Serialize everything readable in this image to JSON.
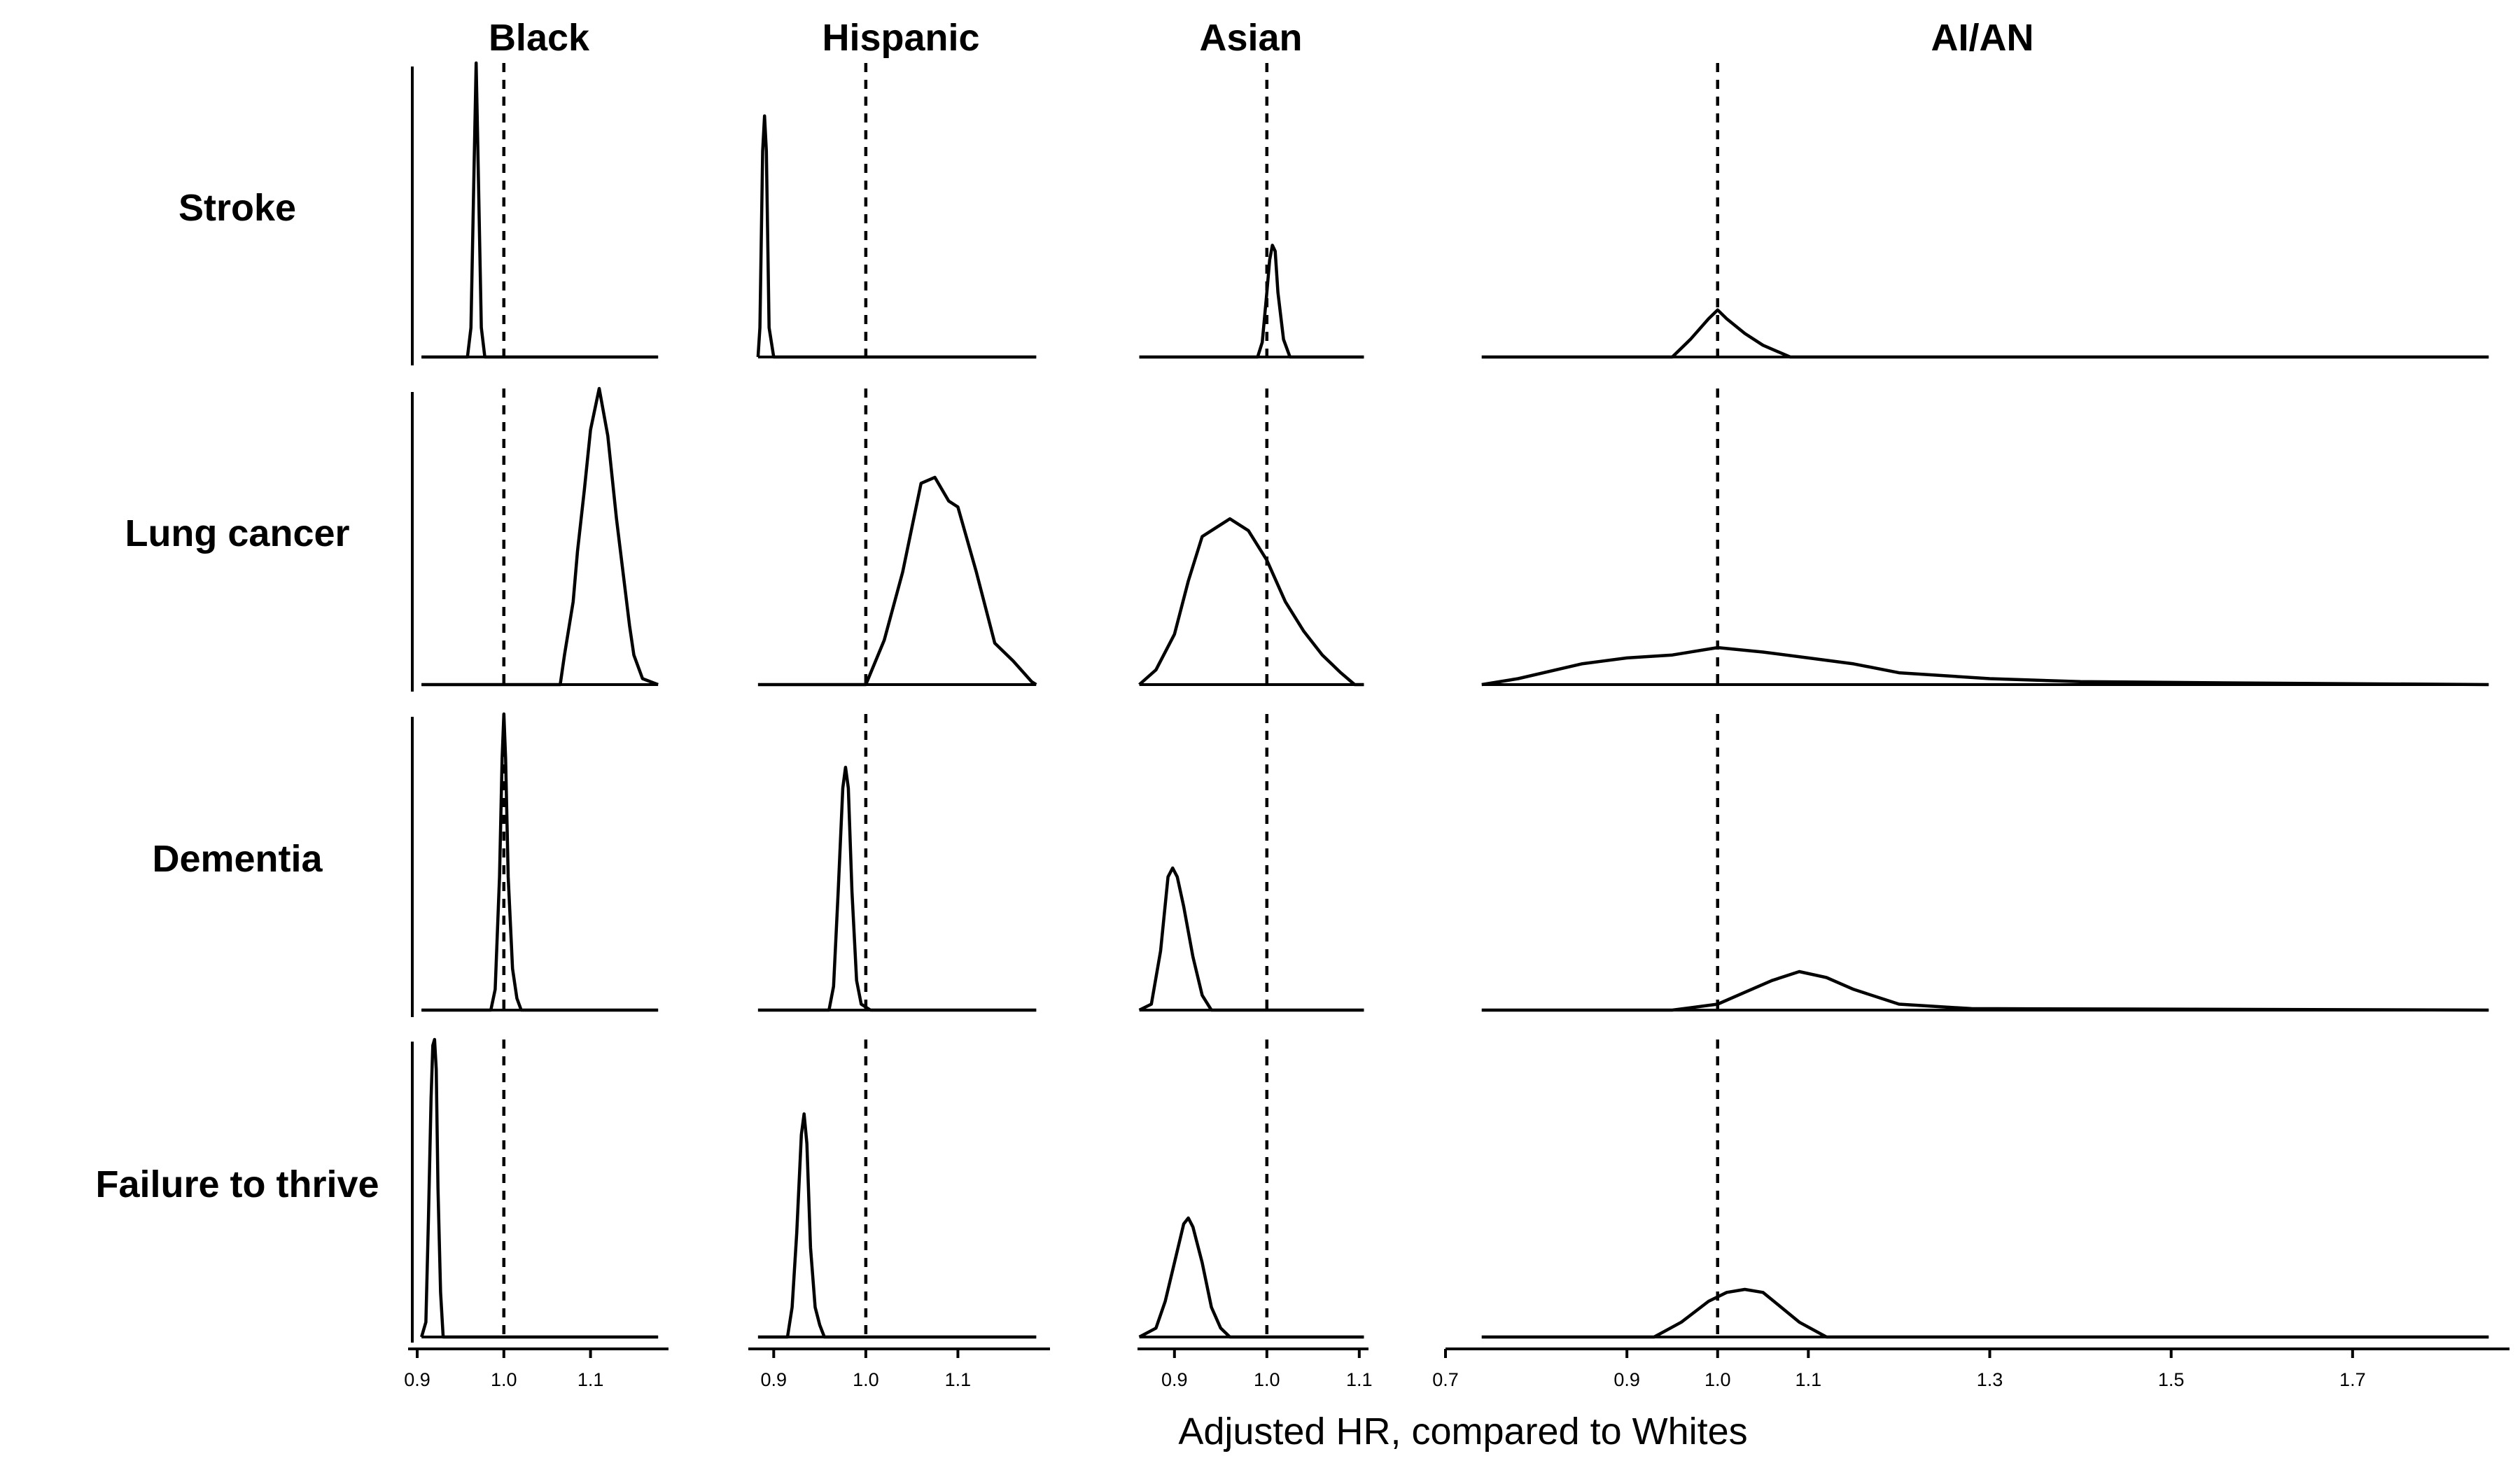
{
  "chart_data": {
    "type": "density",
    "reference_hr": 1.0,
    "x_axis_title": "Adjusted HR, compared to Whites",
    "rows": [
      "Stroke",
      "Lung cancer",
      "Dementia",
      "Failure to thrive"
    ],
    "columns": [
      {
        "title": "Black",
        "xlim": [
          0.9,
          1.19
        ],
        "ticks": [
          0.9,
          1.0,
          1.1
        ],
        "tick_labels": [
          "0.9",
          "1.0",
          "1.1"
        ]
      },
      {
        "title": "Hispanic",
        "xlim": [
          0.88,
          1.2
        ],
        "ticks": [
          0.9,
          1.0,
          1.1
        ],
        "tick_labels": [
          "0.9",
          "1.0",
          "1.1"
        ]
      },
      {
        "title": "Asian",
        "xlim": [
          0.86,
          1.11
        ],
        "ticks": [
          0.9,
          1.0,
          1.1
        ],
        "tick_labels": [
          "0.9",
          "1.0",
          "1.1"
        ]
      },
      {
        "title": "AI/AN",
        "xlim": [
          0.7,
          1.9
        ],
        "ticks": [
          0.7,
          0.9,
          1.0,
          1.1,
          1.3,
          1.5,
          1.7
        ],
        "tick_labels": [
          "0.7",
          "0.9",
          "1.0",
          "1.1",
          "1.3",
          "1.5",
          "1.7"
        ]
      }
    ],
    "densities": [
      [
        {
          "x": [
            0.905,
            0.958,
            0.962,
            0.966,
            0.968,
            0.97,
            0.974,
            0.978,
            1.0,
            1.178
          ],
          "y": [
            0,
            0,
            0.1,
            0.7,
            1.0,
            0.7,
            0.1,
            0,
            0,
            0
          ]
        },
        {
          "x": [
            0.883,
            0.885,
            0.888,
            0.89,
            0.892,
            0.895,
            0.9,
            1.0,
            1.185
          ],
          "y": [
            0,
            0.1,
            0.7,
            0.82,
            0.7,
            0.1,
            0,
            0,
            0
          ]
        },
        {
          "x": [
            0.862,
            0.99,
            0.995,
            1.0,
            1.003,
            1.006,
            1.009,
            1.012,
            1.018,
            1.025,
            1.105
          ],
          "y": [
            0,
            0,
            0.05,
            0.22,
            0.33,
            0.38,
            0.36,
            0.22,
            0.06,
            0,
            0
          ]
        },
        {
          "x": [
            0.74,
            0.95,
            0.97,
            0.99,
            1.0,
            1.01,
            1.03,
            1.05,
            1.08,
            1.85
          ],
          "y": [
            0,
            0,
            0.06,
            0.13,
            0.16,
            0.13,
            0.08,
            0.04,
            0,
            0
          ]
        }
      ],
      [
        {
          "x": [
            0.905,
            1.065,
            1.07,
            1.08,
            1.085,
            1.093,
            1.1,
            1.11,
            1.12,
            1.13,
            1.14,
            1.145,
            1.15,
            1.16,
            1.178
          ],
          "y": [
            0,
            0,
            0.1,
            0.28,
            0.45,
            0.66,
            0.86,
            1.0,
            0.84,
            0.56,
            0.32,
            0.2,
            0.1,
            0.02,
            0
          ]
        },
        {
          "x": [
            0.883,
            1.0,
            1.02,
            1.04,
            1.06,
            1.075,
            1.09,
            1.1,
            1.12,
            1.14,
            1.16,
            1.18,
            1.185
          ],
          "y": [
            0,
            0,
            0.15,
            0.38,
            0.68,
            0.7,
            0.62,
            0.6,
            0.38,
            0.14,
            0.08,
            0.01,
            0
          ]
        },
        {
          "x": [
            0.862,
            0.88,
            0.9,
            0.915,
            0.93,
            0.945,
            0.96,
            0.98,
            1.0,
            1.02,
            1.04,
            1.06,
            1.08,
            1.095,
            1.105
          ],
          "y": [
            0,
            0.05,
            0.17,
            0.35,
            0.5,
            0.53,
            0.56,
            0.52,
            0.42,
            0.28,
            0.18,
            0.1,
            0.04,
            0,
            0
          ]
        },
        {
          "x": [
            0.74,
            0.78,
            0.85,
            0.9,
            0.95,
            1.0,
            1.05,
            1.1,
            1.15,
            1.2,
            1.3,
            1.4,
            1.6,
            1.85
          ],
          "y": [
            0,
            0.02,
            0.07,
            0.09,
            0.1,
            0.125,
            0.11,
            0.09,
            0.07,
            0.04,
            0.02,
            0.01,
            0.005,
            0
          ]
        }
      ],
      [
        {
          "x": [
            0.905,
            0.985,
            0.99,
            0.995,
            0.998,
            1.0,
            1.002,
            1.005,
            1.01,
            1.015,
            1.02,
            1.178
          ],
          "y": [
            0,
            0,
            0.07,
            0.45,
            0.85,
            1.0,
            0.85,
            0.45,
            0.14,
            0.04,
            0,
            0
          ]
        },
        {
          "x": [
            0.883,
            0.96,
            0.965,
            0.97,
            0.975,
            0.978,
            0.981,
            0.985,
            0.99,
            0.995,
            1.005,
            1.185
          ],
          "y": [
            0,
            0,
            0.08,
            0.4,
            0.75,
            0.82,
            0.75,
            0.4,
            0.1,
            0.02,
            0,
            0
          ]
        },
        {
          "x": [
            0.862,
            0.875,
            0.885,
            0.893,
            0.898,
            0.903,
            0.91,
            0.92,
            0.93,
            0.94,
            1.105
          ],
          "y": [
            0,
            0.02,
            0.2,
            0.45,
            0.48,
            0.45,
            0.35,
            0.18,
            0.05,
            0,
            0
          ]
        },
        {
          "x": [
            0.74,
            0.95,
            1.0,
            1.03,
            1.06,
            1.09,
            1.12,
            1.15,
            1.2,
            1.28,
            1.85
          ],
          "y": [
            0,
            0,
            0.02,
            0.06,
            0.1,
            0.13,
            0.11,
            0.07,
            0.02,
            0.005,
            0
          ]
        }
      ],
      [
        {
          "x": [
            0.905,
            0.91,
            0.913,
            0.916,
            0.918,
            0.92,
            0.922,
            0.924,
            0.927,
            0.93,
            1.0,
            1.178
          ],
          "y": [
            0,
            0.05,
            0.4,
            0.8,
            0.98,
            1.0,
            0.9,
            0.5,
            0.15,
            0,
            0,
            0
          ]
        },
        {
          "x": [
            0.883,
            0.915,
            0.92,
            0.925,
            0.93,
            0.933,
            0.936,
            0.94,
            0.945,
            0.95,
            0.955,
            1.185
          ],
          "y": [
            0,
            0,
            0.1,
            0.35,
            0.68,
            0.75,
            0.65,
            0.3,
            0.1,
            0.04,
            0,
            0
          ]
        },
        {
          "x": [
            0.862,
            0.88,
            0.89,
            0.9,
            0.91,
            0.915,
            0.92,
            0.93,
            0.94,
            0.95,
            0.96,
            1.105
          ],
          "y": [
            0,
            0.03,
            0.12,
            0.25,
            0.38,
            0.4,
            0.37,
            0.25,
            0.1,
            0.03,
            0,
            0
          ]
        },
        {
          "x": [
            0.74,
            0.93,
            0.96,
            0.99,
            1.01,
            1.03,
            1.05,
            1.07,
            1.09,
            1.12,
            1.85
          ],
          "y": [
            0,
            0,
            0.05,
            0.12,
            0.15,
            0.16,
            0.15,
            0.1,
            0.05,
            0,
            0
          ]
        }
      ]
    ]
  }
}
